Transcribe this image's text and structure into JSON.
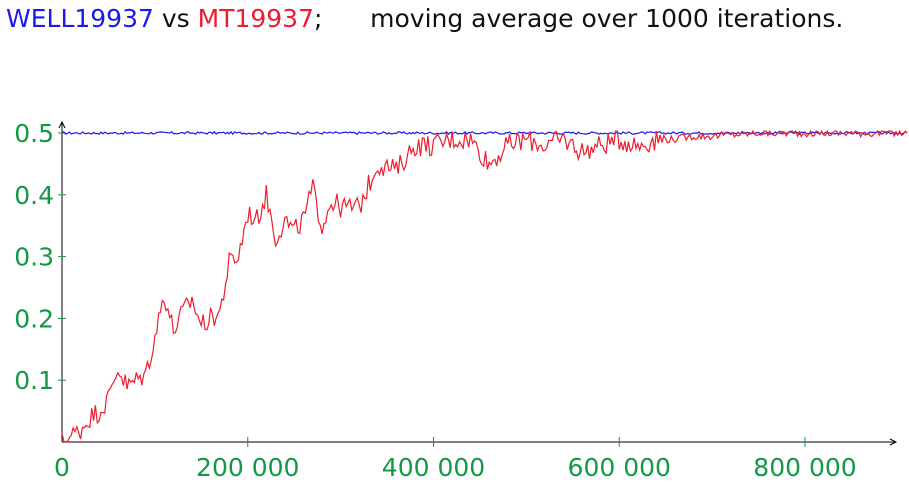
{
  "title": {
    "series_a": "WELL19937",
    "vs": " vs ",
    "series_b": "MT19937",
    "separator": ";",
    "caption": "moving average over 1000 iterations."
  },
  "colors": {
    "well": "#1a1aee",
    "mt": "#ee1c2e",
    "axis": "#000000",
    "tick_labels": "#119944"
  },
  "chart_data": {
    "type": "line",
    "title": "WELL19937 vs MT19937;      moving average over 1000 iterations.",
    "xlabel": "",
    "ylabel": "",
    "xlim": [
      0,
      912000
    ],
    "ylim": [
      0,
      0.52
    ],
    "x_ticks": [
      0,
      200000,
      400000,
      600000,
      800000
    ],
    "x_tick_labels": [
      "0",
      "200 000",
      "400 000",
      "600 000",
      "800 000"
    ],
    "y_ticks": [
      0.1,
      0.2,
      0.3,
      0.4,
      0.5
    ],
    "y_tick_labels": [
      "0.1",
      "0.2",
      "0.3",
      "0.4",
      "0.5"
    ],
    "grid": false,
    "legend": "none",
    "series": [
      {
        "name": "WELL19937",
        "x": [
          0,
          100000,
          200000,
          300000,
          400000,
          500000,
          600000,
          700000,
          800000,
          910000
        ],
        "y": [
          0.5,
          0.5,
          0.5,
          0.5,
          0.5,
          0.5,
          0.5,
          0.5,
          0.5,
          0.5
        ]
      },
      {
        "name": "MT19937",
        "x": [
          0,
          10000,
          20000,
          30000,
          40000,
          50000,
          60000,
          70000,
          80000,
          90000,
          100000,
          110000,
          120000,
          130000,
          140000,
          150000,
          160000,
          170000,
          180000,
          190000,
          200000,
          210000,
          220000,
          230000,
          240000,
          250000,
          260000,
          270000,
          280000,
          290000,
          300000,
          320000,
          340000,
          360000,
          380000,
          400000,
          420000,
          440000,
          460000,
          480000,
          500000,
          520000,
          540000,
          560000,
          580000,
          600000,
          620000,
          640000,
          660000,
          680000,
          700000,
          750000,
          800000,
          850000,
          910000
        ],
        "y": [
          0.0,
          0.01,
          0.02,
          0.04,
          0.05,
          0.07,
          0.12,
          0.09,
          0.1,
          0.11,
          0.17,
          0.24,
          0.18,
          0.21,
          0.23,
          0.19,
          0.2,
          0.21,
          0.29,
          0.3,
          0.37,
          0.36,
          0.4,
          0.33,
          0.36,
          0.34,
          0.36,
          0.41,
          0.35,
          0.39,
          0.38,
          0.38,
          0.45,
          0.44,
          0.48,
          0.48,
          0.49,
          0.49,
          0.45,
          0.48,
          0.49,
          0.48,
          0.49,
          0.47,
          0.48,
          0.49,
          0.48,
          0.49,
          0.49,
          0.495,
          0.495,
          0.5,
          0.5,
          0.5,
          0.5
        ]
      }
    ]
  }
}
